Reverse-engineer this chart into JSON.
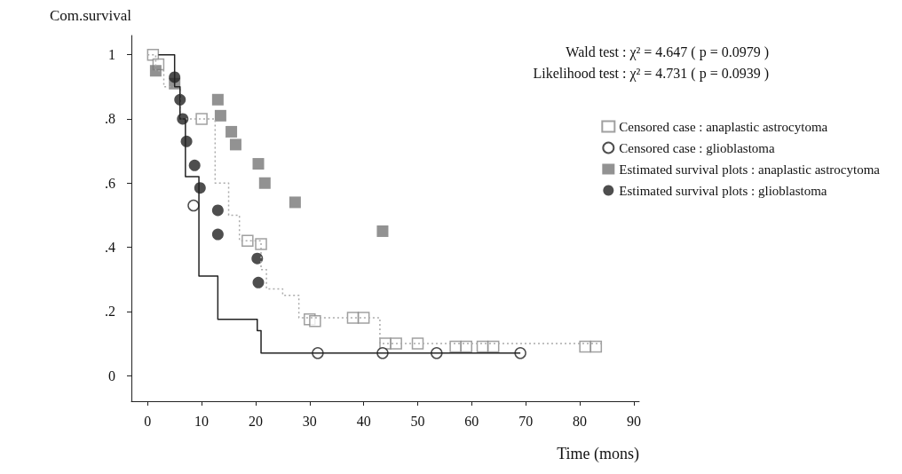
{
  "chart_data": {
    "type": "scatter",
    "ylabel": "Com.survival",
    "xlabel": "Time (mons)",
    "annotations": [
      "Wald test : χ² = 4.647 ( p = 0.0979 )",
      "Likelihood test : χ² = 4.731 ( p = 0.0939 )"
    ],
    "xlim": [
      -3,
      91
    ],
    "xticks": [
      0,
      10,
      20,
      30,
      40,
      50,
      60,
      70,
      80,
      90
    ],
    "ylim": [
      -0.08,
      1.06
    ],
    "yticks": [
      0,
      {
        "value": 0.2,
        "label": ".2"
      },
      {
        "value": 0.4,
        "label": ".4"
      },
      {
        "value": 0.6,
        "label": ".6"
      },
      {
        "value": 0.8,
        "label": ".8"
      },
      1
    ],
    "grid": false,
    "legend": "top right",
    "series": [
      {
        "type": "step",
        "color": "#aaaaaa",
        "line_style": "dotted",
        "marker": "none",
        "x": [
          0,
          1.5,
          3,
          6,
          12.5,
          15,
          17,
          21,
          22,
          25,
          28,
          43,
          84
        ],
        "values": [
          1,
          0.95,
          0.9,
          0.8,
          0.6,
          0.5,
          0.42,
          0.33,
          0.27,
          0.25,
          0.18,
          0.1,
          0.1
        ]
      },
      {
        "type": "step",
        "color": "#222222",
        "line_style": "solid",
        "marker": "none",
        "x": [
          2,
          5,
          6,
          7,
          9.5,
          13,
          20.3,
          21,
          69
        ],
        "values": [
          1,
          0.9,
          0.8,
          0.62,
          0.31,
          0.175,
          0.14,
          0.07,
          0.07
        ]
      },
      {
        "name": "Censored case : anaplastic astrocytoma",
        "marker": "square",
        "color": "#888888",
        "x": [
          1,
          2,
          10,
          18.5,
          21,
          30,
          31,
          38,
          40,
          44,
          46,
          50,
          57,
          59,
          62,
          64,
          81,
          83
        ],
        "values": [
          1,
          0.97,
          0.8,
          0.42,
          0.41,
          0.175,
          0.17,
          0.18,
          0.18,
          0.1,
          0.1,
          0.1,
          0.09,
          0.09,
          0.09,
          0.09,
          0.09,
          0.09
        ]
      },
      {
        "name": "Censored case : glioblastoma",
        "marker": "circle",
        "color": "#222222",
        "x": [
          8.5,
          31.5,
          43.5,
          53.5,
          69
        ],
        "values": [
          0.53,
          0.07,
          0.07,
          0.07,
          0.07
        ]
      },
      {
        "name": "Estimated survival plots : anaplastic astrocytoma",
        "marker": "square",
        "color": "#777777",
        "x": [
          1.5,
          5,
          13,
          13.5,
          15.5,
          16.3,
          20.5,
          21.7,
          27.3,
          43.5
        ],
        "values": [
          0.95,
          0.91,
          0.86,
          0.81,
          0.76,
          0.72,
          0.66,
          0.6,
          0.54,
          0.45
        ]
      },
      {
        "name": "Estimated survival plots : glioblastoma",
        "marker": "circle",
        "color": "#222222",
        "x": [
          5,
          6,
          6.5,
          7.2,
          8.7,
          9.7,
          13,
          13,
          20.3,
          20.5
        ],
        "values": [
          0.93,
          0.86,
          0.8,
          0.73,
          0.655,
          0.585,
          0.515,
          0.44,
          0.365,
          0.29
        ]
      }
    ]
  }
}
